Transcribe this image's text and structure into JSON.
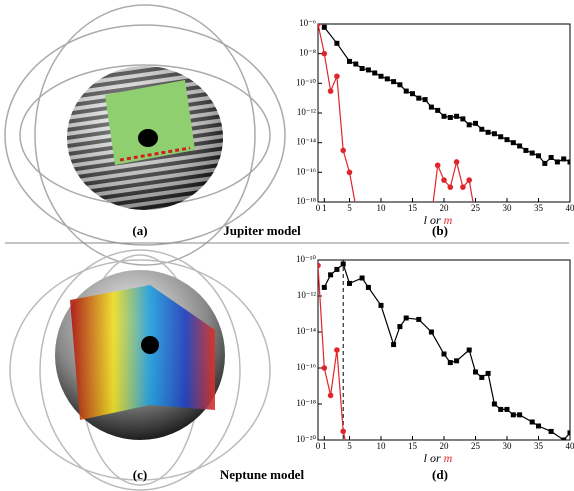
{
  "figures": [
    {
      "label": "(a)",
      "title": "Jupiter model"
    },
    {
      "label": "(c)",
      "title": "Neptune model"
    }
  ],
  "chart_data": [
    {
      "type": "line",
      "panel_label": "(b)",
      "log_y": true,
      "xlabel_joiner": "or",
      "xlim": [
        0,
        40
      ],
      "xticks": [
        0,
        1,
        5,
        10,
        15,
        20,
        25,
        30,
        35,
        40
      ],
      "ylim": [
        1e-18,
        1e-06
      ],
      "yticks": [
        {
          "value": 1e-06,
          "label": "10⁻⁶"
        },
        {
          "value": 1e-08,
          "label": "10⁻⁸"
        },
        {
          "value": 1e-10,
          "label": "10⁻¹⁰"
        },
        {
          "value": 1e-12,
          "label": "10⁻¹²"
        },
        {
          "value": 1e-14,
          "label": "10⁻¹⁴"
        },
        {
          "value": 1e-16,
          "label": "10⁻¹⁶"
        },
        {
          "value": 1e-18,
          "label": "10⁻¹⁸"
        }
      ],
      "series": [
        {
          "name": "l",
          "color": "#000000",
          "marker": "square",
          "x": [
            1,
            3,
            5,
            6,
            7,
            8,
            9,
            10,
            11,
            12,
            13,
            14,
            15,
            16,
            17,
            18,
            19,
            20,
            21,
            22,
            23,
            24,
            25,
            26,
            27,
            28,
            29,
            30,
            31,
            32,
            33,
            34,
            35,
            36,
            37,
            38,
            39,
            40
          ],
          "values": [
            6e-07,
            5e-08,
            3e-09,
            2e-09,
            1e-09,
            8e-10,
            5e-10,
            3e-10,
            2e-10,
            1.3e-10,
            8e-11,
            3e-11,
            2e-11,
            1e-11,
            8e-12,
            2.5e-12,
            1.5e-12,
            6e-13,
            5e-13,
            6e-13,
            4e-13,
            1.6e-13,
            2e-13,
            8e-14,
            5e-14,
            4e-14,
            2.5e-14,
            1.6e-14,
            1e-14,
            6e-15,
            3e-15,
            2e-15,
            1.3e-15,
            4e-16,
            1e-15,
            5e-16,
            8e-16,
            5e-16
          ]
        },
        {
          "name": "m",
          "color": "#e0262b",
          "marker": "circle",
          "x": [
            0,
            1,
            2,
            3,
            4,
            5,
            6,
            12,
            18,
            19,
            20,
            21,
            22,
            23,
            24,
            25
          ],
          "values": [
            1e-06,
            1e-08,
            3e-11,
            3e-10,
            3e-15,
            1e-16,
            5e-19,
            null,
            1e-19,
            3e-16,
            3e-17,
            1e-17,
            5e-16,
            1e-17,
            3e-17,
            1e-19
          ]
        }
      ]
    },
    {
      "type": "line",
      "panel_label": "(d)",
      "log_y": true,
      "xlabel_joiner": "or",
      "xlim": [
        0,
        40
      ],
      "xticks": [
        0,
        1,
        5,
        10,
        15,
        20,
        25,
        30,
        35,
        40
      ],
      "ylim": [
        1e-20,
        1e-10
      ],
      "yticks": [
        {
          "value": 1e-10,
          "label": "10⁻¹⁰"
        },
        {
          "value": 1e-12,
          "label": "10⁻¹²"
        },
        {
          "value": 1e-14,
          "label": "10⁻¹⁴"
        },
        {
          "value": 1e-16,
          "label": "10⁻¹⁶"
        },
        {
          "value": 1e-18,
          "label": "10⁻¹⁸"
        },
        {
          "value": 1e-20,
          "label": "10⁻²⁰"
        }
      ],
      "vlines": [
        4
      ],
      "series": [
        {
          "name": "l",
          "color": "#000000",
          "marker": "square",
          "x": [
            1,
            2,
            3,
            4,
            5,
            7,
            8,
            10,
            12,
            13,
            14,
            16,
            18,
            20,
            21,
            22,
            24,
            25,
            26,
            27,
            28,
            29,
            30,
            31,
            32,
            34,
            35,
            37,
            39,
            40
          ],
          "values": [
            3e-12,
            1.5e-11,
            3e-11,
            6e-11,
            5e-12,
            1e-11,
            3e-12,
            3e-13,
            2e-15,
            2e-14,
            6e-14,
            5e-14,
            1e-14,
            6e-16,
            2e-16,
            2.5e-16,
            1e-15,
            6e-17,
            3e-17,
            5e-17,
            1e-18,
            5e-19,
            5e-19,
            2.5e-19,
            2.5e-19,
            1e-19,
            6e-20,
            3e-20,
            1e-20,
            2.5e-20
          ]
        },
        {
          "name": "m",
          "color": "#e0262b",
          "marker": "circle",
          "x": [
            0,
            1,
            2,
            3,
            4,
            5
          ],
          "values": [
            5e-11,
            1e-16,
            3e-18,
            1e-15,
            3e-20,
            1e-21
          ]
        }
      ]
    }
  ]
}
